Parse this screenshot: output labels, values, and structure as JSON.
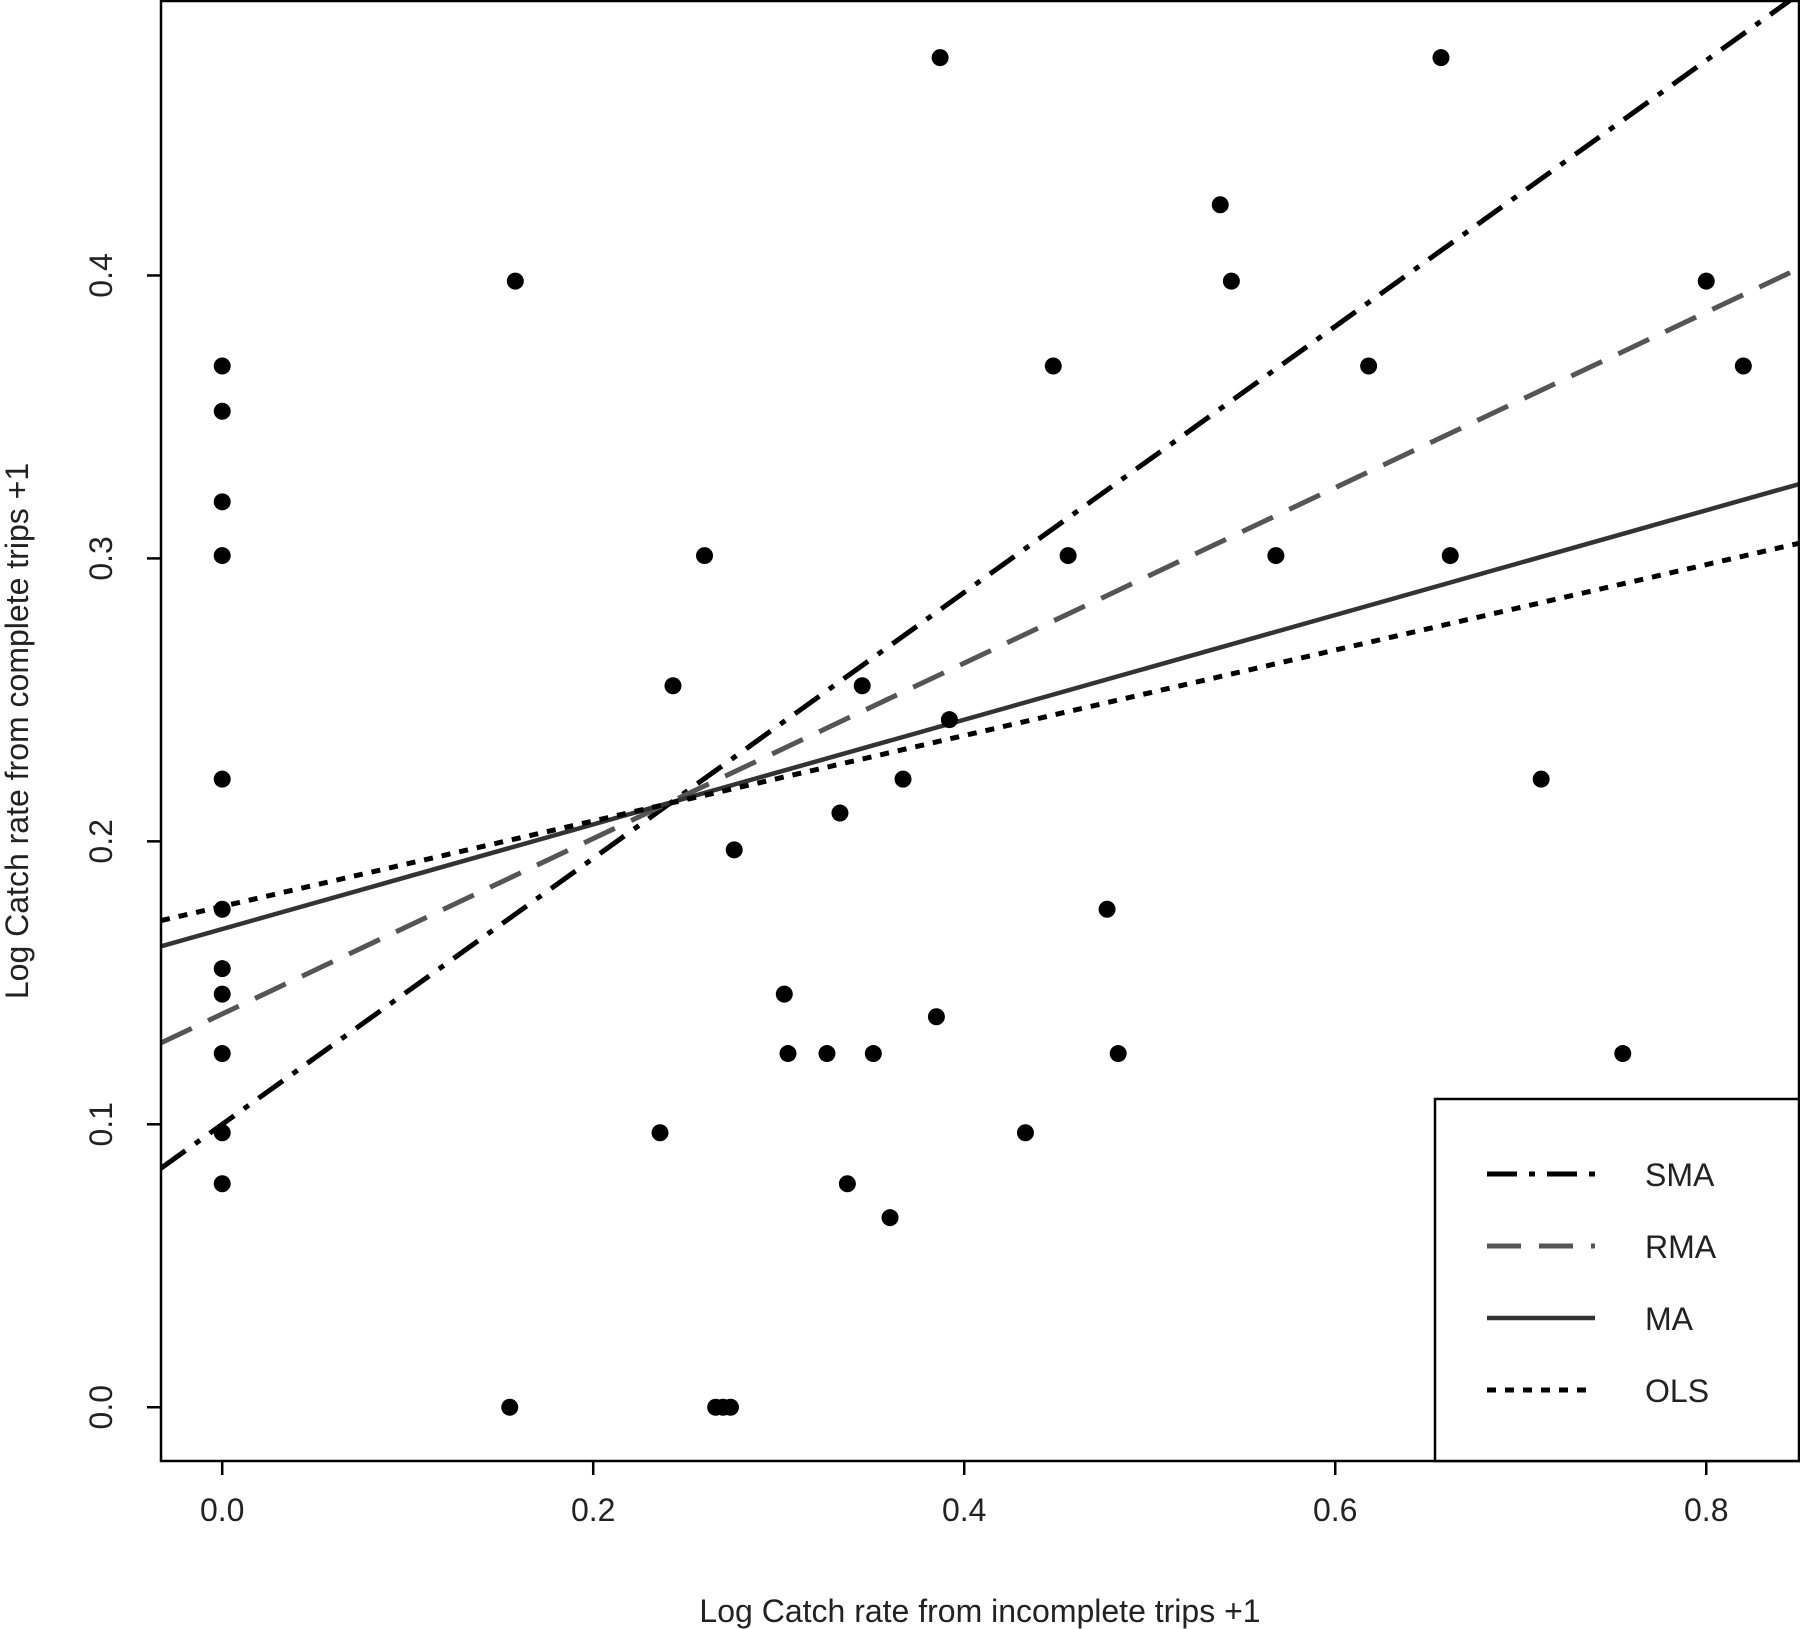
{
  "chart_data": {
    "type": "scatter",
    "xlabel": "Log Catch rate from incomplete trips +1",
    "ylabel": "Log Catch rate from complete trips +1",
    "xlim": [
      -0.033,
      0.85
    ],
    "ylim": [
      -0.019,
      0.497
    ],
    "x_ticks": [
      0.0,
      0.2,
      0.4,
      0.6,
      0.8
    ],
    "y_ticks": [
      0.0,
      0.1,
      0.2,
      0.3,
      0.4
    ],
    "x_tick_labels": [
      "0.0",
      "0.2",
      "0.4",
      "0.6",
      "0.8"
    ],
    "y_tick_labels": [
      "0.0",
      "0.1",
      "0.2",
      "0.3",
      "0.4"
    ],
    "grid": false,
    "legend_position": "bottom-right",
    "points": [
      [
        0.0,
        0.368
      ],
      [
        0.0,
        0.352
      ],
      [
        0.0,
        0.32
      ],
      [
        0.0,
        0.301
      ],
      [
        0.0,
        0.222
      ],
      [
        0.0,
        0.176
      ],
      [
        0.0,
        0.155
      ],
      [
        0.0,
        0.146
      ],
      [
        0.0,
        0.125
      ],
      [
        0.0,
        0.097
      ],
      [
        0.0,
        0.079
      ],
      [
        0.158,
        0.398
      ],
      [
        0.155,
        0.0
      ],
      [
        0.236,
        0.097
      ],
      [
        0.243,
        0.255
      ],
      [
        0.26,
        0.301
      ],
      [
        0.266,
        0.0
      ],
      [
        0.27,
        0.0
      ],
      [
        0.274,
        0.0
      ],
      [
        0.276,
        0.197
      ],
      [
        0.303,
        0.146
      ],
      [
        0.305,
        0.125
      ],
      [
        0.326,
        0.125
      ],
      [
        0.333,
        0.21
      ],
      [
        0.337,
        0.079
      ],
      [
        0.345,
        0.255
      ],
      [
        0.351,
        0.125
      ],
      [
        0.36,
        0.067
      ],
      [
        0.367,
        0.222
      ],
      [
        0.385,
        0.138
      ],
      [
        0.387,
        0.477
      ],
      [
        0.392,
        0.243
      ],
      [
        0.433,
        0.097
      ],
      [
        0.448,
        0.368
      ],
      [
        0.456,
        0.301
      ],
      [
        0.477,
        0.176
      ],
      [
        0.483,
        0.125
      ],
      [
        0.538,
        0.425
      ],
      [
        0.544,
        0.398
      ],
      [
        0.568,
        0.301
      ],
      [
        0.618,
        0.368
      ],
      [
        0.657,
        0.477
      ],
      [
        0.662,
        0.301
      ],
      [
        0.711,
        0.222
      ],
      [
        0.755,
        0.125
      ],
      [
        0.8,
        0.398
      ],
      [
        0.82,
        0.368
      ]
    ],
    "lines": [
      {
        "name": "SMA",
        "intercept": 0.1,
        "slope": 0.47,
        "style": "dashdot",
        "color": "#000000"
      },
      {
        "name": "RMA",
        "intercept": 0.139,
        "slope": 0.31,
        "style": "dashed",
        "color": "#555555"
      },
      {
        "name": "MA",
        "intercept": 0.169,
        "slope": 0.185,
        "style": "solid",
        "color": "#333333"
      },
      {
        "name": "OLS",
        "intercept": 0.177,
        "slope": 0.151,
        "style": "dotted",
        "color": "#000000"
      }
    ]
  }
}
